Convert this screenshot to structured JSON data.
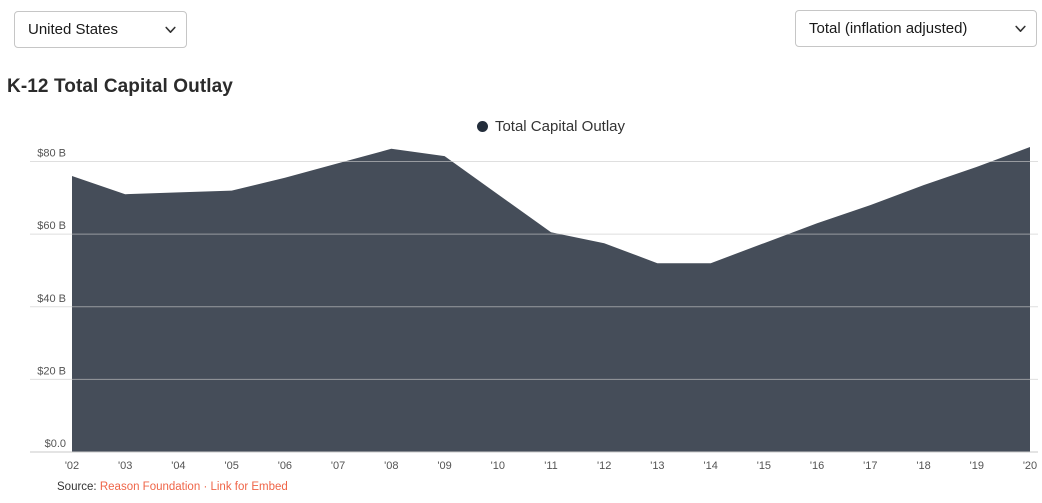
{
  "controls": {
    "region_select": {
      "value": "United States"
    },
    "metric_select": {
      "value": "Total (inflation adjusted)"
    }
  },
  "title": "K-12 Total Capital Outlay",
  "legend": {
    "label": "Total Capital Outlay"
  },
  "chart_data": {
    "type": "area",
    "title": "K-12 Total Capital Outlay",
    "categories": [
      "'02",
      "'03",
      "'04",
      "'05",
      "'06",
      "'07",
      "'08",
      "'09",
      "'10",
      "'11",
      "'12",
      "'13",
      "'14",
      "'15",
      "'16",
      "'17",
      "'18",
      "'19",
      "'20"
    ],
    "series": [
      {
        "name": "Total Capital Outlay",
        "values": [
          76,
          71,
          71.5,
          72,
          75.5,
          79.5,
          83.5,
          81.5,
          71,
          60.5,
          57.5,
          52,
          52,
          57.5,
          63,
          68,
          73.5,
          78.5,
          84
        ]
      }
    ],
    "unit": "USD billions",
    "xlabel": "",
    "ylabel": "",
    "y_ticks": [
      {
        "value": 0,
        "label": "$0.0"
      },
      {
        "value": 20,
        "label": "$20 B"
      },
      {
        "value": 40,
        "label": "$40 B"
      },
      {
        "value": 60,
        "label": "$60 B"
      },
      {
        "value": 80,
        "label": "$80 B"
      }
    ],
    "ylim": [
      0,
      86
    ],
    "grid": true,
    "legend_position": "top-center"
  },
  "source": {
    "prefix": "Source:",
    "link1": "Reason Foundation",
    "separator": "·",
    "link2": "Link for Embed"
  },
  "colors": {
    "area": "#454d59",
    "legend_marker": "#232d3b",
    "gridline": "#cccccc",
    "baseline": "#c9c9c9",
    "axis_text": "#545454",
    "link": "#ef6548",
    "title_text": "#2b2b2b"
  },
  "icons": {
    "region_chevron": "chevron-down-icon",
    "metric_chevron": "chevron-down-icon",
    "legend_marker": "circle-icon"
  }
}
